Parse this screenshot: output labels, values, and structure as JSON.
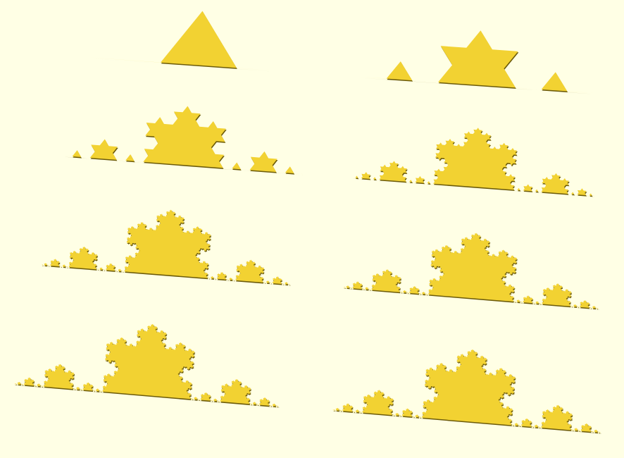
{
  "scene": {
    "background_color": "#ffffe5",
    "fill_color": "#f2d232",
    "edge_color": "#6b5a0a",
    "shape": "koch-curve",
    "iterations": [
      1,
      2,
      3,
      4,
      5,
      6,
      7,
      8
    ]
  }
}
